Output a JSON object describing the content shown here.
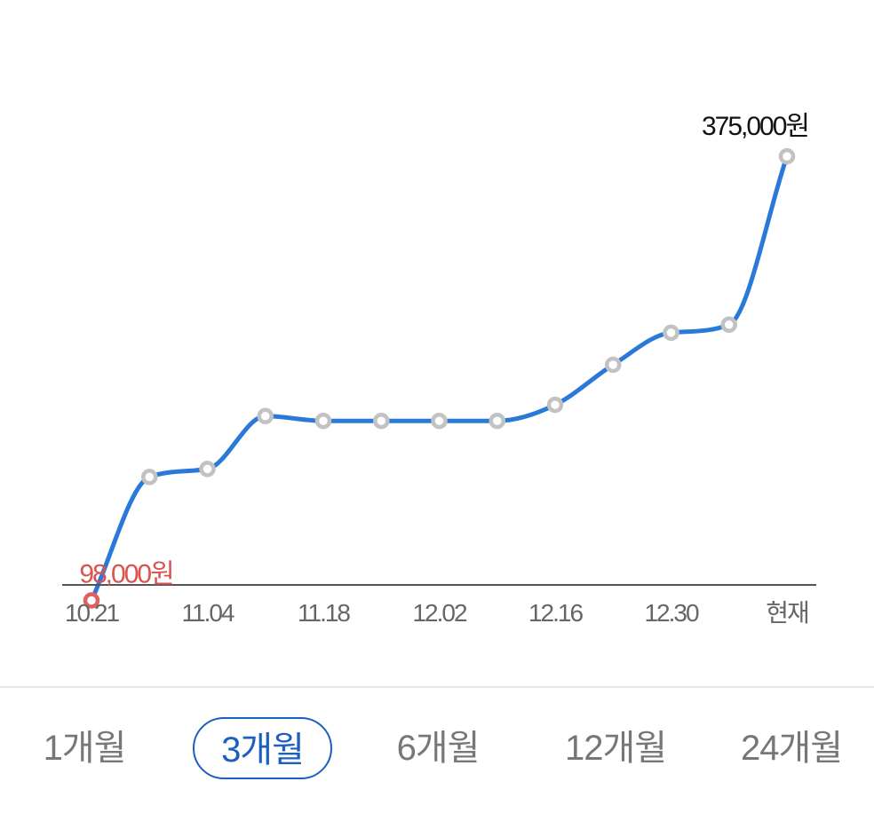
{
  "chart_data": {
    "type": "line",
    "x": [
      "10.21",
      "",
      "11.04",
      "",
      "11.18",
      "",
      "12.02",
      "",
      "12.16",
      "",
      "12.30",
      "",
      "현재"
    ],
    "tick_labels": [
      "10.21",
      "11.04",
      "11.18",
      "12.02",
      "12.16",
      "12.30",
      "현재"
    ],
    "series": [
      {
        "values": [
          98000,
          175000,
          180000,
          213000,
          210000,
          210000,
          210000,
          210000,
          220000,
          245000,
          265000,
          270000,
          375000
        ]
      }
    ],
    "annotations": {
      "min_label": "98,000원",
      "max_label": "375,000원"
    },
    "ylim": [
      85000,
      395000
    ],
    "grid": false,
    "colors": {
      "line": "#2a79d9",
      "marker": "#c2c2c2",
      "min_marker": "#e06060",
      "min_label": "#d9534f",
      "max_label": "#111111",
      "axis": "#555555"
    }
  },
  "period_tabs": {
    "items": [
      "1개월",
      "3개월",
      "6개월",
      "12개월",
      "24개월"
    ],
    "selected": "3개월"
  }
}
